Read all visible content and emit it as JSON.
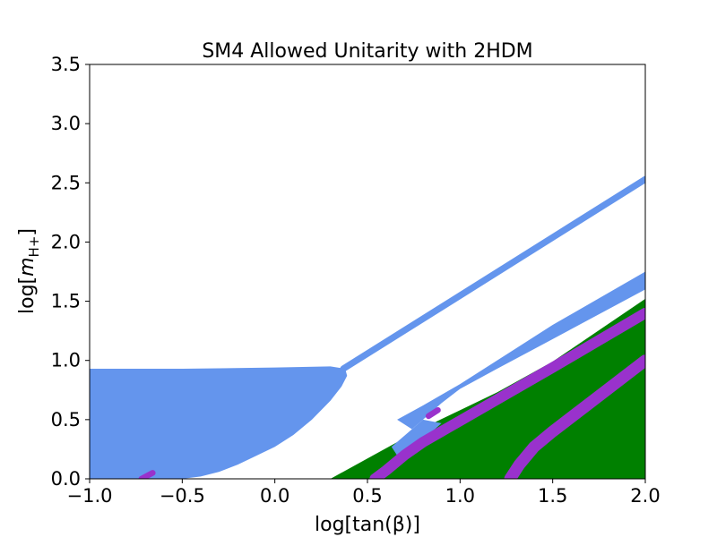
{
  "chart_data": {
    "type": "area",
    "title": "SM4 Allowed Unitarity with 2HDM",
    "xlabel": "log[tan(β)]",
    "ylabel_parts": [
      "log[",
      "m",
      "H+",
      "]"
    ],
    "xlim": [
      -1.0,
      2.0
    ],
    "ylim": [
      0.0,
      3.5
    ],
    "xticks": [
      -1.0,
      -0.5,
      0.0,
      0.5,
      1.0,
      1.5,
      2.0
    ],
    "xtick_labels": [
      "−1.0",
      "−0.5",
      "0.0",
      "0.5",
      "1.0",
      "1.5",
      "2.0"
    ],
    "yticks": [
      0.0,
      0.5,
      1.0,
      1.5,
      2.0,
      2.5,
      3.0,
      3.5
    ],
    "ytick_labels": [
      "0.0",
      "0.5",
      "1.0",
      "1.5",
      "2.0",
      "2.5",
      "3.0",
      "3.5"
    ],
    "grid": false,
    "legend": "none",
    "colors": {
      "blue": "#6495ed",
      "green": "#008000",
      "purple": "#9932cc"
    },
    "regions": [
      {
        "color": "blue",
        "kind": "polygon",
        "points": [
          [
            -1.0,
            0.0
          ],
          [
            -1.0,
            0.93
          ],
          [
            -0.5,
            0.93
          ],
          [
            0.0,
            0.94
          ],
          [
            0.3,
            0.95
          ],
          [
            0.38,
            0.93
          ],
          [
            0.39,
            0.87
          ],
          [
            0.36,
            0.78
          ],
          [
            0.3,
            0.66
          ],
          [
            0.2,
            0.5
          ],
          [
            0.1,
            0.37
          ],
          [
            0.0,
            0.27
          ],
          [
            -0.2,
            0.12
          ],
          [
            -0.3,
            0.06
          ],
          [
            -0.4,
            0.02
          ],
          [
            -0.5,
            0.0
          ]
        ]
      },
      {
        "color": "blue",
        "kind": "band",
        "centerline": [
          [
            0.37,
            0.93
          ],
          [
            2.0,
            2.53
          ]
        ],
        "thickness": 0.055
      },
      {
        "color": "green",
        "kind": "polygon",
        "points": [
          [
            0.3,
            0.0
          ],
          [
            0.8,
            0.43
          ],
          [
            1.2,
            0.73
          ],
          [
            1.5,
            0.99
          ],
          [
            2.0,
            1.52
          ],
          [
            2.0,
            0.0
          ]
        ]
      },
      {
        "color": "blue",
        "kind": "polygon",
        "points": [
          [
            0.66,
            0.5
          ],
          [
            0.8,
            0.62
          ],
          [
            1.0,
            0.8
          ],
          [
            1.3,
            1.1
          ],
          [
            1.5,
            1.3
          ],
          [
            2.0,
            1.75
          ],
          [
            2.0,
            1.6
          ],
          [
            1.5,
            1.18
          ],
          [
            1.2,
            0.93
          ],
          [
            1.0,
            0.76
          ],
          [
            0.9,
            0.64
          ],
          [
            0.8,
            0.5
          ],
          [
            0.74,
            0.42
          ]
        ]
      },
      {
        "color": "blue",
        "kind": "polygon",
        "points": [
          [
            0.63,
            0.27
          ],
          [
            0.8,
            0.5
          ],
          [
            0.9,
            0.47
          ],
          [
            0.8,
            0.33
          ],
          [
            0.72,
            0.2
          ],
          [
            0.68,
            0.15
          ]
        ]
      },
      {
        "color": "purple",
        "kind": "band",
        "centerline": [
          [
            0.54,
            0.0
          ],
          [
            0.6,
            0.07
          ],
          [
            0.7,
            0.2
          ],
          [
            0.8,
            0.31
          ],
          [
            0.9,
            0.4
          ],
          [
            1.0,
            0.49
          ],
          [
            1.2,
            0.67
          ],
          [
            1.5,
            0.94
          ],
          [
            2.0,
            1.4
          ]
        ],
        "thickness": 0.09
      },
      {
        "color": "purple",
        "kind": "band",
        "centerline": [
          [
            1.27,
            0.0
          ],
          [
            1.32,
            0.12
          ],
          [
            1.4,
            0.27
          ],
          [
            1.5,
            0.4
          ],
          [
            1.7,
            0.64
          ],
          [
            2.0,
            1.0
          ]
        ],
        "thickness": 0.1
      },
      {
        "color": "purple",
        "kind": "band",
        "centerline": [
          [
            0.83,
            0.53
          ],
          [
            0.88,
            0.58
          ]
        ],
        "thickness": 0.05
      },
      {
        "color": "purple",
        "kind": "band",
        "centerline": [
          [
            -0.72,
            0.0
          ],
          [
            -0.66,
            0.05
          ]
        ],
        "thickness": 0.05
      }
    ]
  }
}
